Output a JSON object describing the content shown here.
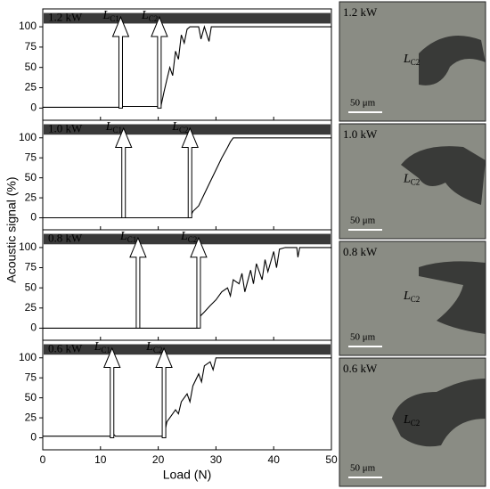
{
  "ylabel": "Acoustic signal (%)",
  "chart_data": [
    {
      "type": "line",
      "panel_label": "1.2 kW",
      "color": "#000000",
      "ylim": [
        -15,
        122
      ],
      "yticks": [
        0,
        25,
        50,
        75,
        100
      ],
      "x": [
        0,
        13.2,
        13.4,
        20,
        20.5,
        21,
        21.5,
        22,
        22.5,
        23,
        23.5,
        24,
        24.5,
        25,
        25.5,
        26,
        27,
        27.4,
        28,
        28.8,
        29.2,
        30,
        30.5,
        50
      ],
      "values": [
        1,
        1,
        2,
        2,
        3,
        20,
        35,
        50,
        40,
        70,
        60,
        90,
        80,
        97,
        100,
        100,
        100,
        85,
        100,
        82,
        100,
        100,
        100,
        100
      ],
      "annotations": [
        {
          "text": "L",
          "sub": "C1",
          "x": 13.5
        },
        {
          "text": "L",
          "sub": "C2",
          "x": 20.2
        }
      ]
    },
    {
      "type": "line",
      "panel_label": "1.0 kW",
      "color": "#000000",
      "ylim": [
        -15,
        122
      ],
      "yticks": [
        0,
        25,
        50,
        75,
        100
      ],
      "x": [
        0,
        25.5,
        26,
        27,
        28,
        29,
        30,
        31,
        32,
        32.5,
        33,
        50
      ],
      "values": [
        0,
        0,
        8,
        15,
        30,
        45,
        60,
        75,
        88,
        95,
        100,
        100
      ],
      "annotations": [
        {
          "text": "L",
          "sub": "C1",
          "x": 14
        },
        {
          "text": "L",
          "sub": "C2",
          "x": 25.5
        }
      ]
    },
    {
      "type": "line",
      "panel_label": "0.8 kW",
      "color": "#000000",
      "ylim": [
        -15,
        122
      ],
      "yticks": [
        0,
        25,
        50,
        75,
        100
      ],
      "x": [
        0,
        27,
        27.3,
        28,
        29,
        30,
        31,
        32,
        32.5,
        33,
        34,
        34.5,
        35,
        36,
        36.5,
        37,
        38,
        38.5,
        39,
        40,
        40.5,
        41,
        42,
        43,
        44,
        44.2,
        44.5,
        45,
        50
      ],
      "values": [
        0,
        0,
        15,
        20,
        28,
        35,
        45,
        50,
        40,
        60,
        55,
        68,
        45,
        72,
        55,
        80,
        60,
        85,
        70,
        95,
        75,
        98,
        100,
        100,
        100,
        88,
        100,
        100,
        100
      ],
      "annotations": [
        {
          "text": "L",
          "sub": "C1",
          "x": 16.5
        },
        {
          "text": "L",
          "sub": "C2",
          "x": 27
        }
      ]
    },
    {
      "type": "line",
      "panel_label": "0.6 kW",
      "color": "#000000",
      "ylim": [
        -15,
        122
      ],
      "yticks": [
        0,
        25,
        50,
        75,
        100
      ],
      "x": [
        0,
        11.8,
        12.2,
        12.6,
        21,
        21.5,
        22,
        23,
        23.5,
        24,
        25,
        25.5,
        26,
        27,
        27.5,
        28,
        29,
        29.5,
        30,
        31,
        50
      ],
      "values": [
        2,
        2,
        5,
        2,
        2,
        20,
        25,
        35,
        30,
        45,
        55,
        45,
        65,
        80,
        70,
        90,
        95,
        85,
        100,
        100,
        100
      ],
      "annotations": [
        {
          "text": "L",
          "sub": "C1",
          "x": 12
        },
        {
          "text": "L",
          "sub": "C2",
          "x": 21
        }
      ],
      "xlim": [
        0,
        50
      ],
      "xticks": [
        0,
        10,
        20,
        30,
        40,
        50
      ],
      "xlabel": "Load (N)"
    }
  ],
  "micrographs": [
    {
      "label": "1.2 kW",
      "marker": "L",
      "marker_sub": "C2",
      "scale_bar": "50 μm"
    },
    {
      "label": "1.0 kW",
      "marker": "L",
      "marker_sub": "C2",
      "scale_bar": "50 μm"
    },
    {
      "label": "0.8 kW",
      "marker": "L",
      "marker_sub": "C2",
      "scale_bar": "50 μm"
    },
    {
      "label": "0.6 kW",
      "marker": "L",
      "marker_sub": "C2",
      "scale_bar": "50 μm"
    }
  ]
}
